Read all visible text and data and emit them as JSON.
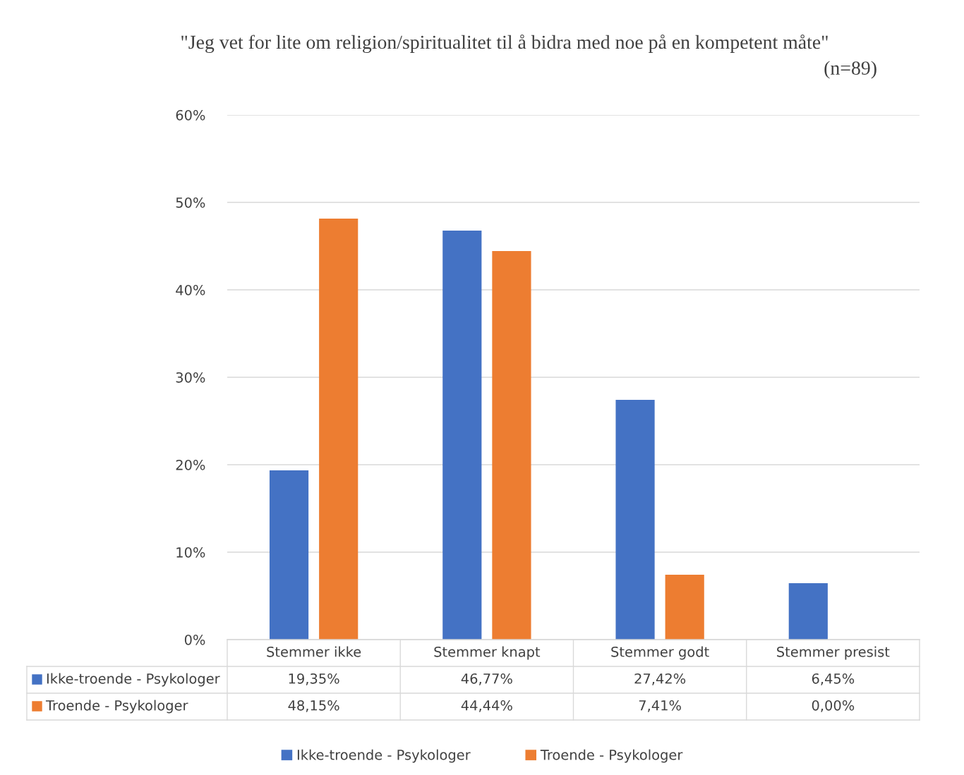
{
  "chart_data": {
    "type": "bar",
    "title": "\"Jeg vet for lite om religion/spiritualitet til å bidra med noe på en kompetent måte\"",
    "subtitle": "(n=89)",
    "categories": [
      "Stemmer ikke",
      "Stemmer knapt",
      "Stemmer godt",
      "Stemmer presist"
    ],
    "series": [
      {
        "name": "Ikke-troende - Psykologer",
        "color": "#4472c4",
        "values": [
          19.35,
          46.77,
          27.42,
          6.45
        ],
        "value_labels": [
          "19,35%",
          "46,77%",
          "27,42%",
          "6,45%"
        ]
      },
      {
        "name": "Troende - Psykologer",
        "color": "#ed7d31",
        "values": [
          48.15,
          44.44,
          7.41,
          0.0
        ],
        "value_labels": [
          "48,15%",
          "44,44%",
          "7,41%",
          "0,00%"
        ]
      }
    ],
    "ylim": [
      0,
      60
    ],
    "yticks": [
      {
        "value": 0,
        "label": "0%"
      },
      {
        "value": 10,
        "label": "10%"
      },
      {
        "value": 20,
        "label": "20%"
      },
      {
        "value": 30,
        "label": "30%"
      },
      {
        "value": 40,
        "label": "40%"
      },
      {
        "value": 50,
        "label": "50%"
      },
      {
        "value": 60,
        "label": "60%"
      }
    ],
    "grid": "y",
    "legend": "bottom"
  }
}
